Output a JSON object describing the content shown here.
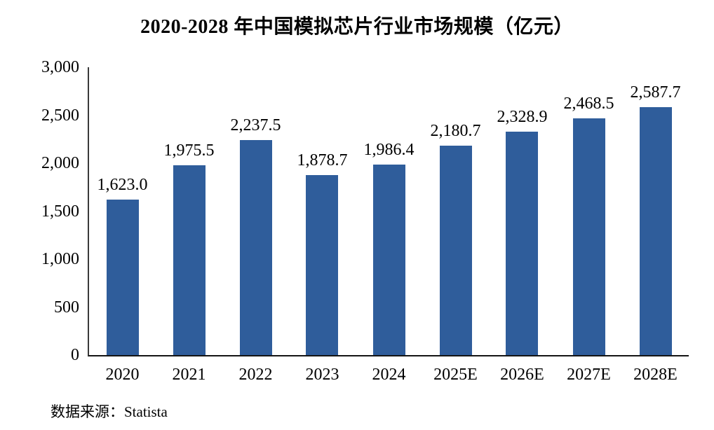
{
  "title": "2020-2028 年中国模拟芯片行业市场规模（亿元）",
  "source": "数据来源：Statista",
  "colors": {
    "bar": "#2F5D9B",
    "axis_x": "#141414",
    "axis_y": "#3a3a3a",
    "text": "#000000",
    "background": "#ffffff"
  },
  "chart_data": {
    "type": "bar",
    "title": "2020-2028 年中国模拟芯片行业市场规模（亿元）",
    "xlabel": "",
    "ylabel": "",
    "categories": [
      "2020",
      "2021",
      "2022",
      "2023",
      "2024",
      "2025E",
      "2026E",
      "2027E",
      "2028E"
    ],
    "values": [
      1623.0,
      1975.5,
      2237.5,
      1878.7,
      1986.4,
      2180.7,
      2328.9,
      2468.5,
      2587.7
    ],
    "value_labels": [
      "1,623.0",
      "1,975.5",
      "2,237.5",
      "1,878.7",
      "1,986.4",
      "2,180.7",
      "2,328.9",
      "2,468.5",
      "2,587.7"
    ],
    "ylim": [
      0,
      3000
    ],
    "yticks": [
      0,
      500,
      1000,
      1500,
      2000,
      2500,
      3000
    ],
    "ytick_labels": [
      "0",
      "500",
      "1,000",
      "1,500",
      "2,000",
      "2,500",
      "3,000"
    ],
    "grid": false,
    "legend": "none",
    "source_note": "数据来源：Statista"
  }
}
